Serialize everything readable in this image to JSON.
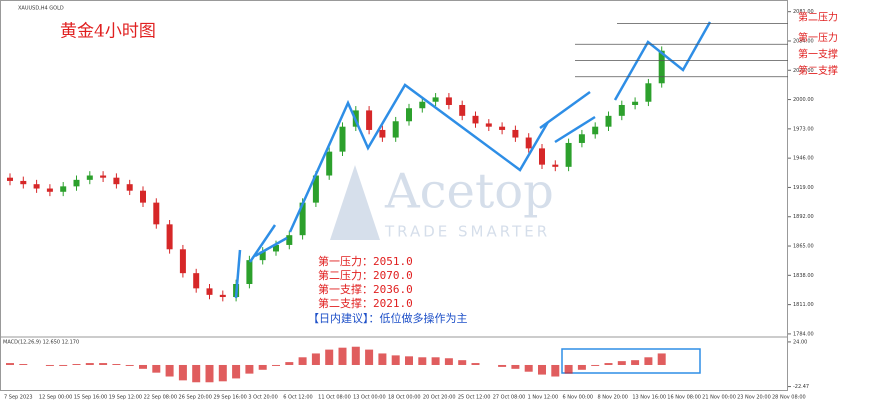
{
  "chart_data": {
    "type": "candlestick",
    "header": "XAUUSD,H4  GOLD",
    "title": "黄金4小时图",
    "watermark": "Acetop",
    "watermark_sub": "TRADE SMARTER",
    "up_color": "#2ca02c",
    "down_color": "#d62728",
    "open": [
      1928,
      1925,
      1922,
      1918,
      1915,
      1920,
      1926,
      1930,
      1928,
      1922,
      1916,
      1905,
      1885,
      1862,
      1840,
      1826,
      1820,
      1818,
      1830,
      1852,
      1860,
      1866,
      1875,
      1905,
      1930,
      1952,
      1975,
      1990,
      1972,
      1965,
      1980,
      1992,
      1998,
      2002,
      1995,
      1985,
      1978,
      1975,
      1972,
      1965,
      1955,
      1940,
      1938,
      1960,
      1968,
      1975,
      1985,
      1995,
      1998,
      2015
    ],
    "high": [
      1932,
      1929,
      1926,
      1922,
      1924,
      1930,
      1934,
      1934,
      1932,
      1926,
      1920,
      1909,
      1889,
      1866,
      1844,
      1830,
      1824,
      1834,
      1856,
      1864,
      1870,
      1879,
      1909,
      1934,
      1956,
      1979,
      1994,
      1994,
      1976,
      1984,
      1996,
      2002,
      2006,
      2006,
      1999,
      1989,
      1982,
      1979,
      1976,
      1969,
      1959,
      1944,
      1964,
      1972,
      1979,
      1989,
      1999,
      2002,
      2019,
      2049
    ],
    "low": [
      1921,
      1918,
      1914,
      1911,
      1911,
      1916,
      1922,
      1924,
      1918,
      1912,
      1901,
      1881,
      1858,
      1836,
      1822,
      1816,
      1814,
      1814,
      1826,
      1848,
      1856,
      1862,
      1871,
      1901,
      1926,
      1948,
      1971,
      1968,
      1961,
      1961,
      1976,
      1988,
      1994,
      1991,
      1981,
      1974,
      1971,
      1968,
      1961,
      1951,
      1936,
      1934,
      1934,
      1956,
      1964,
      1971,
      1981,
      1991,
      1994,
      2011
    ],
    "close": [
      1925,
      1922,
      1918,
      1915,
      1920,
      1926,
      1930,
      1928,
      1922,
      1916,
      1905,
      1885,
      1862,
      1840,
      1826,
      1820,
      1818,
      1830,
      1852,
      1860,
      1866,
      1875,
      1905,
      1930,
      1952,
      1975,
      1990,
      1972,
      1965,
      1980,
      1992,
      1998,
      2002,
      1995,
      1985,
      1978,
      1975,
      1972,
      1965,
      1955,
      1940,
      1938,
      1960,
      1968,
      1975,
      1985,
      1995,
      1998,
      2015,
      2045
    ],
    "ylim": [
      1783,
      2089
    ],
    "yticks": [
      {
        "value": 2081,
        "label": "2081.00"
      },
      {
        "value": 2054,
        "label": "2054.00"
      },
      {
        "value": 2027,
        "label": "2027.00"
      },
      {
        "value": 2000,
        "label": "2000.00"
      },
      {
        "value": 1973,
        "label": "1973.00"
      },
      {
        "value": 1946,
        "label": "1946.00"
      },
      {
        "value": 1919,
        "label": "1919.00"
      },
      {
        "value": 1892,
        "label": "1892.00"
      },
      {
        "value": 1865,
        "label": "1865.00"
      },
      {
        "value": 1838,
        "label": "1838.00"
      },
      {
        "value": 1811,
        "label": "1811.00"
      },
      {
        "value": 1784,
        "label": "1784.00"
      }
    ],
    "xlabels": [
      "7 Sep 2023",
      "12 Sep 00:00",
      "15 Sep 16:00",
      "19 Sep 12:00",
      "22 Sep 08:00",
      "26 Sep 20:00",
      "29 Sep 16:00",
      "3 Oct 20:00",
      "6 Oct 12:00",
      "11 Oct 08:00",
      "13 Oct 00:00",
      "18 Oct 00:00",
      "20 Oct 20:00",
      "25 Oct 12:00",
      "27 Oct 08:00",
      "1 Nov 12:00",
      "6 Nov 00:00",
      "8 Nov 20:00",
      "13 Nov 16:00",
      "16 Nov 08:00",
      "21 Nov 00:00",
      "23 Nov 20:00",
      "28 Nov 08:00"
    ],
    "levels": [
      {
        "name": "第二压力",
        "value": 2070
      },
      {
        "name": "第一压力",
        "value": 2051
      },
      {
        "name": "第一支撑",
        "value": 2036
      },
      {
        "name": "第二支撑",
        "value": 2021
      }
    ],
    "notes": [
      "第一压力：2051.0",
      "第二压力：2070.0",
      "第一支撑：2036.0",
      "第二支撑：2021.0"
    ],
    "advice": "【日内建议】：低位做多操作为主",
    "macd": {
      "label": "MACD(12,26,9) 12.650 12.170",
      "color": "#d62728",
      "ylim": [
        -25,
        26
      ],
      "yticks": [
        {
          "value": 24,
          "label": "24.00"
        },
        {
          "value": -22.47,
          "label": "-22.47"
        }
      ],
      "values": [
        2,
        1,
        0,
        -1,
        -1,
        1,
        2,
        2,
        1,
        -1,
        -4,
        -8,
        -12,
        -16,
        -18,
        -18,
        -17,
        -14,
        -9,
        -5,
        -1,
        3,
        8,
        12,
        16,
        18,
        19,
        16,
        12,
        10,
        9,
        8,
        8,
        7,
        5,
        2,
        0,
        -2,
        -4,
        -7,
        -10,
        -12,
        -9,
        -5,
        -1,
        2,
        4,
        5,
        8,
        12
      ]
    }
  }
}
